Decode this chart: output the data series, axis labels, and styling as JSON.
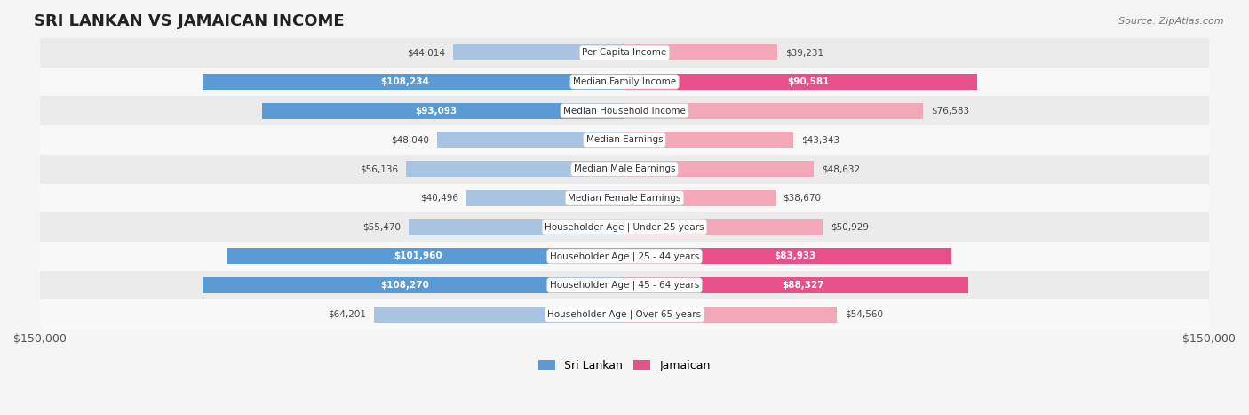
{
  "title": "SRI LANKAN VS JAMAICAN INCOME",
  "source": "Source: ZipAtlas.com",
  "categories": [
    "Per Capita Income",
    "Median Family Income",
    "Median Household Income",
    "Median Earnings",
    "Median Male Earnings",
    "Median Female Earnings",
    "Householder Age | Under 25 years",
    "Householder Age | 25 - 44 years",
    "Householder Age | 45 - 64 years",
    "Householder Age | Over 65 years"
  ],
  "sri_lankan": [
    44014,
    108234,
    93093,
    48040,
    56136,
    40496,
    55470,
    101960,
    108270,
    64201
  ],
  "jamaican": [
    39231,
    90581,
    76583,
    43343,
    48632,
    38670,
    50929,
    83933,
    88327,
    54560
  ],
  "sri_lankan_labels": [
    "$44,014",
    "$108,234",
    "$93,093",
    "$48,040",
    "$56,136",
    "$40,496",
    "$55,470",
    "$101,960",
    "$108,270",
    "$64,201"
  ],
  "jamaican_labels": [
    "$39,231",
    "$90,581",
    "$76,583",
    "$43,343",
    "$48,632",
    "$38,670",
    "$50,929",
    "$83,933",
    "$88,327",
    "$54,560"
  ],
  "max_value": 150000,
  "sri_lankan_color_light": "#a8c4e0",
  "sri_lankan_color_dark": "#5b9bd5",
  "jamaican_color_light": "#f4a7b9",
  "jamaican_color_dark": "#e8508a",
  "threshold": 80000,
  "bg_color": "#f5f5f5",
  "row_bg_color": "#ffffff",
  "row_alt_bg_color": "#f0f0f0"
}
